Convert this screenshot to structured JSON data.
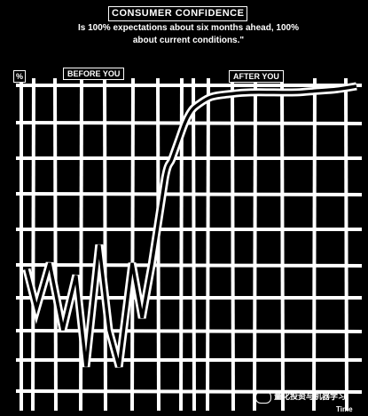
{
  "chart_data": {
    "type": "line",
    "title": "CONSUMER CONFIDENCE",
    "subtitle": "Is 100% expectations about six months ahead, 100% about current conditions.\"",
    "ylabel": "%",
    "xlabel": "Time",
    "annotations": [
      "BEFORE YOU",
      "AFTER YOU"
    ],
    "grid": true,
    "series": [
      {
        "x": [
          0,
          3,
          7,
          11,
          15,
          18,
          22,
          25,
          28,
          32,
          35,
          38,
          42,
          44,
          46,
          48,
          50,
          52,
          56,
          62,
          68,
          75,
          82,
          88,
          94,
          100
        ],
        "y": [
          40,
          27,
          42,
          20,
          38,
          8,
          48,
          20,
          8,
          42,
          24,
          42,
          70,
          76,
          82,
          88,
          92,
          94,
          96.5,
          97.5,
          98,
          98,
          98,
          98.5,
          99,
          100
        ]
      }
    ]
  },
  "watermark": "量化投资与机器学习",
  "colors": {
    "background": "#000000",
    "line": "#ffffff",
    "grid": "#ffffff"
  }
}
